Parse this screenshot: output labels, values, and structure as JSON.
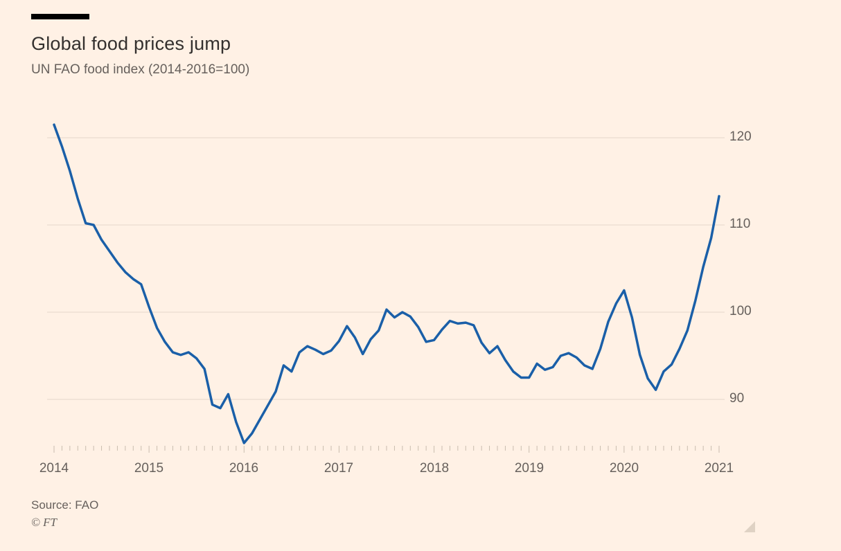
{
  "header": {
    "title": "Global food prices jump",
    "subtitle": "UN FAO food index (2014-2016=100)"
  },
  "footer": {
    "source": "Source: FAO",
    "copyright": "© FT"
  },
  "colors": {
    "background": "#FFF1E5",
    "title_text": "#33302E",
    "secondary_text": "#66605C",
    "accent_bar": "#000000",
    "line": "#1A5FA8"
  },
  "chart_data": {
    "type": "line",
    "title": "Global food prices jump",
    "subtitle": "UN FAO food index (2014-2016=100)",
    "x_unit": "month",
    "x_start": "2014-01",
    "x_end": "2021-01",
    "xticks": [
      "2014",
      "2015",
      "2016",
      "2017",
      "2018",
      "2019",
      "2020",
      "2021"
    ],
    "yticks": [
      90,
      100,
      110,
      120
    ],
    "ylim": [
      84,
      123
    ],
    "grid": true,
    "legend_position": "none",
    "line_color": "#1A5FA8",
    "grid_color": "#E5D8CA",
    "tick_color": "#C9BCAE",
    "series": [
      {
        "name": "UN FAO food index (2014-2016=100)",
        "values": [
          121.5,
          119.0,
          116.2,
          113.0,
          110.2,
          110.0,
          108.3,
          107.0,
          105.7,
          104.6,
          103.8,
          103.2,
          100.6,
          98.2,
          96.6,
          95.4,
          95.1,
          95.4,
          94.7,
          93.5,
          89.4,
          89.0,
          90.6,
          87.4,
          85.0,
          86.1,
          87.7,
          89.3,
          90.9,
          93.9,
          93.2,
          95.4,
          96.1,
          95.7,
          95.2,
          95.6,
          96.7,
          98.4,
          97.1,
          95.2,
          96.9,
          97.9,
          100.3,
          99.4,
          100.0,
          99.5,
          98.3,
          96.6,
          96.8,
          98.0,
          99.0,
          98.7,
          98.8,
          98.5,
          96.5,
          95.3,
          96.1,
          94.5,
          93.2,
          92.5,
          92.5,
          94.1,
          93.4,
          93.7,
          95.0,
          95.3,
          94.8,
          93.9,
          93.5,
          95.8,
          98.9,
          101.0,
          102.5,
          99.4,
          95.1,
          92.4,
          91.1,
          93.2,
          94.0,
          95.8,
          97.9,
          101.3,
          105.2,
          108.5,
          113.3
        ]
      }
    ]
  }
}
